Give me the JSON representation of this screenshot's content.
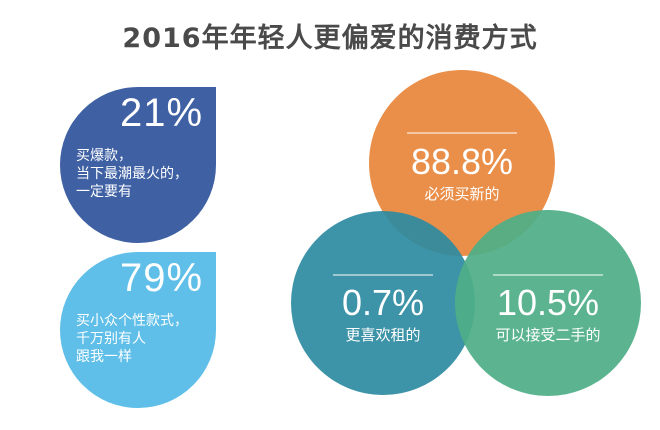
{
  "title": "2016年年轻人更偏爱的消费方式",
  "chart_data": [
    {
      "type": "drop",
      "items": [
        {
          "value": 21,
          "label": "21%",
          "text": "买爆款，\n当下最潮最火的，\n一定要有",
          "color": "#3f61a4"
        },
        {
          "value": 79,
          "label": "79%",
          "text": "买小众个性款式，\n千万别有人\n跟我一样",
          "color": "#5fbfe8"
        }
      ]
    },
    {
      "type": "venn",
      "items": [
        {
          "value": 88.8,
          "label": "88.8%",
          "text": "必须买新的",
          "color": "#e8873b"
        },
        {
          "value": 0.7,
          "label": "0.7%",
          "text": "更喜欢租的",
          "color": "#2e8ba0"
        },
        {
          "value": 10.5,
          "label": "10.5%",
          "text": "可以接受二手的",
          "color": "#4fae86"
        }
      ]
    }
  ]
}
